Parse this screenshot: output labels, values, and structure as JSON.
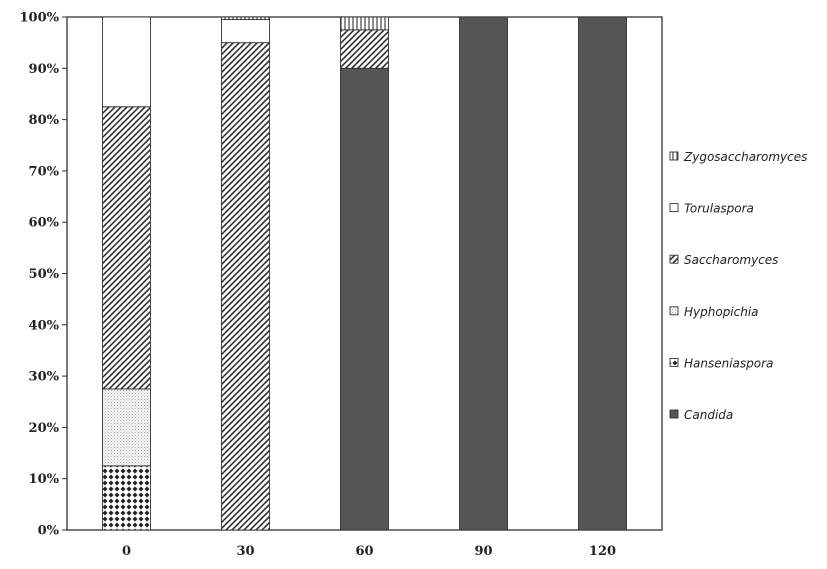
{
  "chart_data": {
    "type": "bar",
    "stacked": true,
    "percent": true,
    "categories": [
      "0",
      "30",
      "60",
      "90",
      "120"
    ],
    "series": [
      {
        "name": "Candida",
        "values": [
          0,
          0,
          90,
          100,
          100
        ],
        "pattern": "solid",
        "color": "#555555"
      },
      {
        "name": "Hanseniaspora",
        "values": [
          12.5,
          0,
          0,
          0,
          0
        ],
        "pattern": "diamonds",
        "color": "#222222"
      },
      {
        "name": "Hyphopichia",
        "values": [
          15,
          0,
          0,
          0,
          0
        ],
        "pattern": "fine-dots",
        "color": "#bbbbbb"
      },
      {
        "name": "Saccharomyces",
        "values": [
          55,
          95,
          7.5,
          0,
          0
        ],
        "pattern": "diagonal",
        "color": "#333333"
      },
      {
        "name": "Torulaspora",
        "values": [
          17.5,
          4.5,
          0,
          0,
          0
        ],
        "pattern": "white",
        "color": "#ffffff"
      },
      {
        "name": "Zygosaccharomyces",
        "values": [
          0,
          0.5,
          2.5,
          0,
          0
        ],
        "pattern": "vertical-lines",
        "color": "#444444"
      }
    ],
    "legend_order": [
      "Zygosaccharomyces",
      "Torulaspora",
      "Saccharomyces",
      "Hyphopichia",
      "Hanseniaspora",
      "Candida"
    ],
    "y_ticks": [
      "0%",
      "10%",
      "20%",
      "30%",
      "40%",
      "50%",
      "60%",
      "70%",
      "80%",
      "90%",
      "100%"
    ],
    "ylim": [
      0,
      100
    ],
    "legend_position": "right",
    "grid": false,
    "title": "",
    "xlabel": "",
    "ylabel": ""
  }
}
